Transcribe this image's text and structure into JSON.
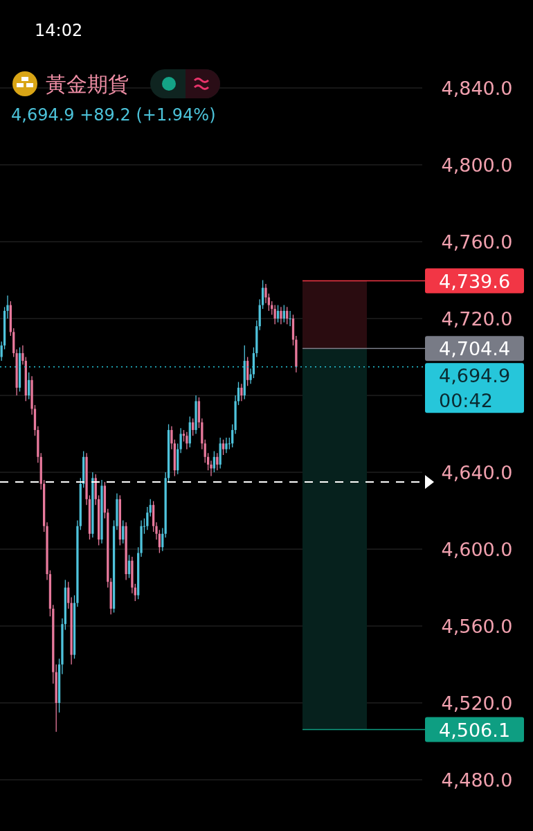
{
  "chart_data": {
    "type": "candlestick",
    "title": "黃金期貨",
    "subtitle": "4,694.9  +89.2 (+1.94%)",
    "annotations": [
      "14:02"
    ],
    "categories": [
      null,
      null,
      null,
      null,
      null,
      null,
      null,
      null,
      null,
      null,
      null,
      null,
      null,
      null,
      null,
      null,
      null,
      null,
      null,
      null,
      null,
      null,
      null,
      null,
      null,
      null,
      null,
      null,
      null,
      null,
      null,
      null,
      null,
      null,
      null,
      null,
      null,
      null,
      null,
      null,
      null,
      null,
      null,
      null,
      null,
      null,
      null,
      null,
      null,
      null,
      null,
      null,
      null,
      null,
      null,
      null,
      null,
      null,
      null,
      null,
      null,
      null,
      null,
      null,
      null,
      null,
      null,
      null,
      null,
      null,
      null,
      null,
      null,
      null,
      null,
      null,
      null,
      null,
      null,
      null,
      null,
      null,
      null,
      null,
      null,
      null,
      null,
      null,
      null,
      null,
      null,
      null,
      null,
      null,
      null,
      null,
      null,
      null,
      null,
      null,
      null,
      null,
      null,
      null,
      null,
      null,
      null,
      null,
      null,
      null,
      null,
      null,
      null,
      null,
      null,
      null,
      null,
      null,
      null,
      null,
      null,
      null,
      null,
      null,
      null,
      null,
      null,
      null,
      null,
      null,
      null,
      null,
      null,
      null,
      null,
      null,
      null,
      null,
      null
    ],
    "ohlc": [
      [
        4700,
        4708,
        4698,
        4706
      ],
      [
        4706,
        4726,
        4704,
        4724
      ],
      [
        4724,
        4732,
        4720,
        4727
      ],
      [
        4727,
        4729,
        4711,
        4713
      ],
      [
        4713,
        4715,
        4700,
        4702
      ],
      [
        4702,
        4704,
        4680,
        4684
      ],
      [
        4684,
        4705,
        4682,
        4702
      ],
      [
        4702,
        4706,
        4696,
        4698
      ],
      [
        4698,
        4700,
        4677,
        4680
      ],
      [
        4680,
        4692,
        4678,
        4688
      ],
      [
        4688,
        4690,
        4670,
        4673
      ],
      [
        4673,
        4675,
        4659,
        4662
      ],
      [
        4662,
        4664,
        4645,
        4648
      ],
      [
        4648,
        4650,
        4631,
        4634
      ],
      [
        4634,
        4636,
        4609,
        4612
      ],
      [
        4612,
        4614,
        4584,
        4587
      ],
      [
        4587,
        4589,
        4565,
        4569
      ],
      [
        4569,
        4571,
        4530,
        4536
      ],
      [
        4536,
        4540,
        4505,
        4520
      ],
      [
        4520,
        4543,
        4515,
        4540
      ],
      [
        4540,
        4564,
        4535,
        4561
      ],
      [
        4561,
        4584,
        4558,
        4580
      ],
      [
        4580,
        4583,
        4569,
        4572
      ],
      [
        4572,
        4575,
        4540,
        4545
      ],
      [
        4545,
        4576,
        4543,
        4572
      ],
      [
        4572,
        4615,
        4570,
        4612
      ],
      [
        4612,
        4637,
        4610,
        4634
      ],
      [
        4634,
        4651,
        4632,
        4648
      ],
      [
        4648,
        4650,
        4623,
        4626
      ],
      [
        4626,
        4628,
        4605,
        4608
      ],
      [
        4608,
        4640,
        4606,
        4637
      ],
      [
        4637,
        4639,
        4623,
        4626
      ],
      [
        4626,
        4628,
        4602,
        4605
      ],
      [
        4605,
        4636,
        4603,
        4633
      ],
      [
        4633,
        4635,
        4616,
        4619
      ],
      [
        4619,
        4621,
        4580,
        4583
      ],
      [
        4583,
        4585,
        4566,
        4569
      ],
      [
        4569,
        4615,
        4567,
        4612
      ],
      [
        4612,
        4629,
        4610,
        4626
      ],
      [
        4626,
        4628,
        4602,
        4605
      ],
      [
        4605,
        4615,
        4603,
        4612
      ],
      [
        4612,
        4614,
        4584,
        4587
      ],
      [
        4587,
        4597,
        4585,
        4594
      ],
      [
        4594,
        4596,
        4577,
        4580
      ],
      [
        4580,
        4582,
        4573,
        4576
      ],
      [
        4576,
        4601,
        4574,
        4598
      ],
      [
        4598,
        4615,
        4596,
        4612
      ],
      [
        4612,
        4616,
        4608,
        4612
      ],
      [
        4612,
        4622,
        4610,
        4619
      ],
      [
        4619,
        4626,
        4617,
        4623
      ],
      [
        4623,
        4625,
        4609,
        4612
      ],
      [
        4612,
        4614,
        4605,
        4608
      ],
      [
        4608,
        4610,
        4598,
        4601
      ],
      [
        4601,
        4611,
        4599,
        4608
      ],
      [
        4608,
        4640,
        4606,
        4637
      ],
      [
        4637,
        4665,
        4635,
        4662
      ],
      [
        4662,
        4664,
        4652,
        4655
      ],
      [
        4655,
        4657,
        4638,
        4641
      ],
      [
        4641,
        4655,
        4639,
        4652
      ],
      [
        4652,
        4663,
        4650,
        4660
      ],
      [
        4660,
        4662,
        4656,
        4659
      ],
      [
        4659,
        4661,
        4652,
        4655
      ],
      [
        4655,
        4669,
        4653,
        4666
      ],
      [
        4666,
        4668,
        4659,
        4662
      ],
      [
        4662,
        4680,
        4660,
        4677
      ],
      [
        4677,
        4679,
        4663,
        4666
      ],
      [
        4666,
        4668,
        4652,
        4655
      ],
      [
        4655,
        4657,
        4645,
        4648
      ],
      [
        4648,
        4650,
        4641,
        4644
      ],
      [
        4644,
        4646,
        4638,
        4642
      ],
      [
        4642,
        4651,
        4640,
        4648
      ],
      [
        4648,
        4650,
        4641,
        4644
      ],
      [
        4644,
        4658,
        4642,
        4655
      ],
      [
        4655,
        4657,
        4649,
        4652
      ],
      [
        4652,
        4658,
        4650,
        4655
      ],
      [
        4655,
        4658,
        4652,
        4655
      ],
      [
        4655,
        4665,
        4653,
        4662
      ],
      [
        4662,
        4680,
        4660,
        4677
      ],
      [
        4677,
        4687,
        4675,
        4684
      ],
      [
        4684,
        4686,
        4677,
        4680
      ],
      [
        4680,
        4706,
        4678,
        4698
      ],
      [
        4698,
        4700,
        4685,
        4688
      ],
      [
        4688,
        4694,
        4686,
        4691
      ],
      [
        4691,
        4705,
        4689,
        4702
      ],
      [
        4702,
        4719,
        4700,
        4716
      ],
      [
        4716,
        4730,
        4714,
        4727
      ],
      [
        4727,
        4740,
        4725,
        4736
      ],
      [
        4736,
        4738,
        4728,
        4731
      ],
      [
        4731,
        4733,
        4724,
        4727
      ],
      [
        4727,
        4729,
        4722,
        4725
      ],
      [
        4725,
        4727,
        4717,
        4720
      ],
      [
        4720,
        4727,
        4718,
        4724
      ],
      [
        4724,
        4726,
        4717,
        4720
      ],
      [
        4720,
        4727,
        4718,
        4724
      ],
      [
        4724,
        4726,
        4717,
        4720
      ],
      [
        4720,
        4724,
        4716,
        4720
      ],
      [
        4720,
        4722,
        4706,
        4709
      ],
      [
        4709,
        4711,
        4692,
        4694.9
      ],
      null,
      null,
      null,
      null,
      null,
      null,
      null,
      null,
      null,
      null,
      null,
      null,
      null,
      null,
      null,
      null,
      null,
      null,
      null,
      null,
      null,
      null,
      null,
      null,
      null,
      null,
      null,
      null,
      null,
      null,
      null,
      null,
      null,
      null,
      null,
      null,
      null,
      null,
      null,
      null,
      null
    ],
    "colors": [
      "#4fc3dc",
      "#4fc3dc",
      "#4fc3dc",
      "#e8799c",
      "#e8799c",
      "#e8799c",
      "#4fc3dc",
      "#e8799c",
      "#e8799c",
      "#4fc3dc",
      "#e8799c",
      "#e8799c",
      "#e8799c",
      "#e8799c",
      "#e8799c",
      "#e8799c",
      "#e8799c",
      "#e8799c",
      "#e8799c",
      "#4fc3dc",
      "#4fc3dc",
      "#4fc3dc",
      "#e8799c",
      "#e8799c",
      "#4fc3dc",
      "#4fc3dc",
      "#4fc3dc",
      "#4fc3dc",
      "#e8799c",
      "#e8799c",
      "#4fc3dc",
      "#e8799c",
      "#e8799c",
      "#4fc3dc",
      "#e8799c",
      "#e8799c",
      "#e8799c",
      "#4fc3dc",
      "#4fc3dc",
      "#e8799c",
      "#4fc3dc",
      "#e8799c",
      "#4fc3dc",
      "#e8799c",
      "#e8799c",
      "#4fc3dc",
      "#4fc3dc",
      "#4fc3dc",
      "#4fc3dc",
      "#4fc3dc",
      "#e8799c",
      "#e8799c",
      "#e8799c",
      "#4fc3dc",
      "#4fc3dc",
      "#4fc3dc",
      "#e8799c",
      "#e8799c",
      "#4fc3dc",
      "#4fc3dc",
      "#e8799c",
      "#e8799c",
      "#4fc3dc",
      "#e8799c",
      "#4fc3dc",
      "#e8799c",
      "#e8799c",
      "#e8799c",
      "#e8799c",
      "#e8799c",
      "#4fc3dc",
      "#e8799c",
      "#4fc3dc",
      "#e8799c",
      "#4fc3dc",
      "#4fc3dc",
      "#4fc3dc",
      "#4fc3dc",
      "#4fc3dc",
      "#e8799c",
      "#4fc3dc",
      "#e8799c",
      "#4fc3dc",
      "#4fc3dc",
      "#4fc3dc",
      "#4fc3dc",
      "#4fc3dc",
      "#e8799c",
      "#e8799c",
      "#e8799c",
      "#e8799c",
      "#4fc3dc",
      "#e8799c",
      "#4fc3dc",
      "#e8799c",
      "#4fc3dc",
      "#e8799c",
      "#e8799c",
      null,
      null,
      null,
      null,
      null,
      null,
      null,
      null,
      null,
      null,
      null,
      null,
      null,
      null,
      null,
      null,
      null,
      null,
      null,
      null,
      null,
      null,
      null,
      null,
      null,
      null,
      null,
      null,
      null,
      null,
      null,
      null,
      null,
      null,
      null,
      null,
      null,
      null,
      null,
      null,
      null
    ],
    "ylim": [
      4480,
      4840
    ],
    "yticks": [
      {
        "value": 4480,
        "label": "4,480.0"
      },
      {
        "value": 4520,
        "label": "4,520.0"
      },
      {
        "value": 4560,
        "label": "4,560.0"
      },
      {
        "value": 4600,
        "label": "4,600.0"
      },
      {
        "value": 4640,
        "label": "4,640.0"
      },
      {
        "value": 4680,
        "label": null
      },
      {
        "value": 4720,
        "label": "4,720.0"
      },
      {
        "value": 4760,
        "label": "4,760.0"
      },
      {
        "value": 4800,
        "label": "4,800.0"
      },
      {
        "value": 4840,
        "label": "4,840.0"
      }
    ],
    "grid": "y",
    "tick_labels": "y",
    "bands": [
      {
        "axis": "y",
        "from": 4704.4,
        "to": 4739.6,
        "color": "#2a0c10"
      },
      {
        "axis": "y",
        "from": 4506.1,
        "to": 4704.4,
        "color": "#06211d"
      }
    ],
    "ref_lines": [
      {
        "axis": "y",
        "value": 4739.6,
        "label": "4,739.6",
        "color": "#f23645",
        "line_style": "solid"
      },
      {
        "axis": "y",
        "value": 4704.4,
        "label": "4,704.4",
        "color": "#787b86",
        "line_style": "solid"
      },
      {
        "axis": "y",
        "value": 4694.9,
        "label": "4,694.9\n00:42",
        "color": "#26c6da",
        "line_style": "dotted"
      },
      {
        "axis": "y",
        "value": 4635,
        "color": "#ffffff",
        "line_style": "dashed"
      },
      {
        "axis": "y",
        "value": 4506.1,
        "label": "4,506.1",
        "color": "#0e9e82",
        "line_style": "solid"
      }
    ]
  }
}
